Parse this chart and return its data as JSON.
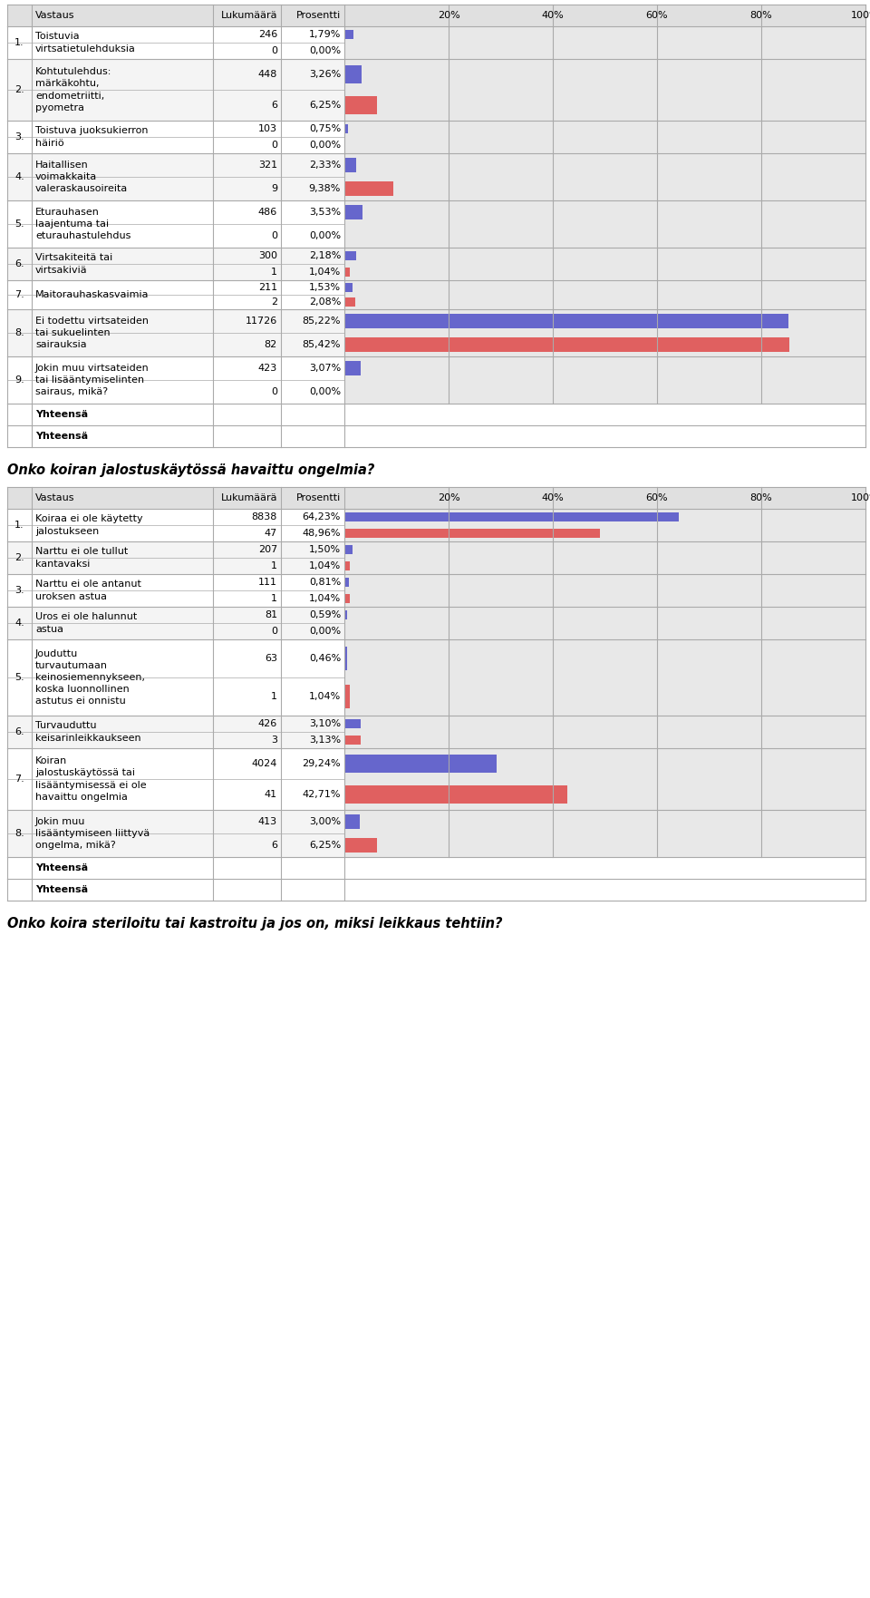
{
  "table2_title": "Onko koiran jalostuskäytössä havaittu ongelmia?",
  "table3_title": "Onko koira steriloitu tai kastroitu ja jos on, miksi leikkaus tehtiin?",
  "table1_rows": [
    {
      "num": "1.",
      "label": "Toistuvia\nvirtsatietulehduksia",
      "val1": 246,
      "pct1": "1,79%",
      "pct1_num": 1.79,
      "val2": 0,
      "pct2": "0,00%",
      "pct2_num": 0.0
    },
    {
      "num": "2.",
      "label": "Kohtutulehdus:\nmärkäkohtu,\nendometriitti,\npyometra",
      "val1": 448,
      "pct1": "3,26%",
      "pct1_num": 3.26,
      "val2": 6,
      "pct2": "6,25%",
      "pct2_num": 6.25
    },
    {
      "num": "3.",
      "label": "Toistuva juoksukierron\nhäiriö",
      "val1": 103,
      "pct1": "0,75%",
      "pct1_num": 0.75,
      "val2": 0,
      "pct2": "0,00%",
      "pct2_num": 0.0
    },
    {
      "num": "4.",
      "label": "Haitallisen\nvoimakkaita\nvaleraskausoireita",
      "val1": 321,
      "pct1": "2,33%",
      "pct1_num": 2.33,
      "val2": 9,
      "pct2": "9,38%",
      "pct2_num": 9.38
    },
    {
      "num": "5.",
      "label": "Eturauhasen\nlaajentuma tai\neturauhastulehdus",
      "val1": 486,
      "pct1": "3,53%",
      "pct1_num": 3.53,
      "val2": 0,
      "pct2": "0,00%",
      "pct2_num": 0.0
    },
    {
      "num": "6.",
      "label": "Virtsakiteitä tai\nvirtsakiviä",
      "val1": 300,
      "pct1": "2,18%",
      "pct1_num": 2.18,
      "val2": 1,
      "pct2": "1,04%",
      "pct2_num": 1.04
    },
    {
      "num": "7.",
      "label": "Maitorauhaskasvaimia",
      "val1": 211,
      "pct1": "1,53%",
      "pct1_num": 1.53,
      "val2": 2,
      "pct2": "2,08%",
      "pct2_num": 2.08
    },
    {
      "num": "8.",
      "label": "Ei todettu virtsateiden\ntai sukuelinten\nsairauksia",
      "val1": 11726,
      "pct1": "85,22%",
      "pct1_num": 85.22,
      "val2": 82,
      "pct2": "85,42%",
      "pct2_num": 85.42
    },
    {
      "num": "9.",
      "label": "Jokin muu virtsateiden\ntai lisääntymiselinten\nsairaus, mikä?",
      "val1": 423,
      "pct1": "3,07%",
      "pct1_num": 3.07,
      "val2": 0,
      "pct2": "0,00%",
      "pct2_num": 0.0
    }
  ],
  "table2_rows": [
    {
      "num": "1.",
      "label": "Koiraa ei ole käytetty\njalostukseen",
      "val1": 8838,
      "pct1": "64,23%",
      "pct1_num": 64.23,
      "val2": 47,
      "pct2": "48,96%",
      "pct2_num": 48.96
    },
    {
      "num": "2.",
      "label": "Narttu ei ole tullut\nkantavaksi",
      "val1": 207,
      "pct1": "1,50%",
      "pct1_num": 1.5,
      "val2": 1,
      "pct2": "1,04%",
      "pct2_num": 1.04
    },
    {
      "num": "3.",
      "label": "Narttu ei ole antanut\nuroksen astua",
      "val1": 111,
      "pct1": "0,81%",
      "pct1_num": 0.81,
      "val2": 1,
      "pct2": "1,04%",
      "pct2_num": 1.04
    },
    {
      "num": "4.",
      "label": "Uros ei ole halunnut\nastua",
      "val1": 81,
      "pct1": "0,59%",
      "pct1_num": 0.59,
      "val2": 0,
      "pct2": "0,00%",
      "pct2_num": 0.0
    },
    {
      "num": "5.",
      "label": "Jouduttu\nturvautumaan\nkeinosiemennykseen,\nkoska luonnollinen\nastutus ei onnistu",
      "val1": 63,
      "pct1": "0,46%",
      "pct1_num": 0.46,
      "val2": 1,
      "pct2": "1,04%",
      "pct2_num": 1.04
    },
    {
      "num": "6.",
      "label": "Turvauduttu\nkeisarinleikkaukseen",
      "val1": 426,
      "pct1": "3,10%",
      "pct1_num": 3.1,
      "val2": 3,
      "pct2": "3,13%",
      "pct2_num": 3.13
    },
    {
      "num": "7.",
      "label": "Koiran\njalostuskäytössä tai\nlisääntymisessä ei ole\nhavaittu ongelmia",
      "val1": 4024,
      "pct1": "29,24%",
      "pct1_num": 29.24,
      "val2": 41,
      "pct2": "42,71%",
      "pct2_num": 42.71
    },
    {
      "num": "8.",
      "label": "Jokin muu\nlisääntymiseen liittyvä\nongelma, mikä?",
      "val1": 413,
      "pct1": "3,00%",
      "pct1_num": 3.0,
      "val2": 6,
      "pct2": "6,25%",
      "pct2_num": 6.25
    }
  ],
  "bar_color1": "#6666cc",
  "bar_color2": "#e06060",
  "header_bg": "#e0e0e0",
  "row_bg_even": "#f4f4f4",
  "row_bg_odd": "#ffffff",
  "grid_color": "#aaaaaa",
  "text_color": "#000000",
  "font_size": 8.0,
  "title_font_size": 10.5
}
